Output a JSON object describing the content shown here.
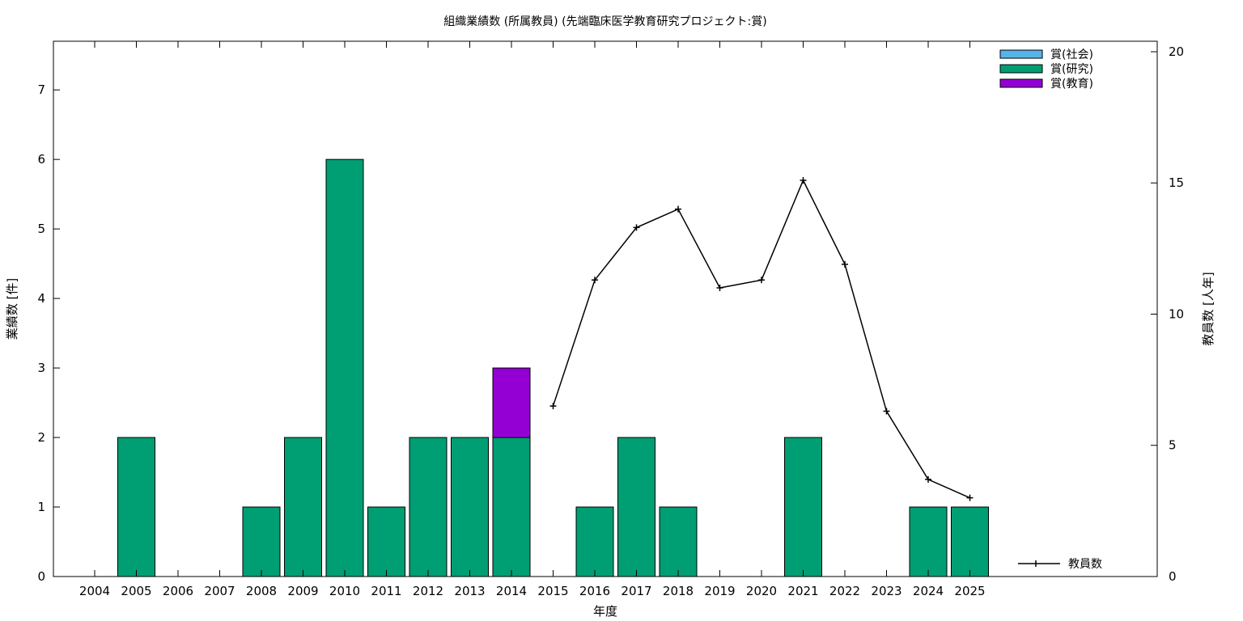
{
  "chart_data": {
    "type": "bar",
    "title": "組織業績数 (所属教員) (先端臨床医学教育研究プロジェクト:賞)",
    "xlabel": "年度",
    "ylabel": "業績数 [件]",
    "y2label": "教員数 [人年]",
    "categories": [
      "2004",
      "2005",
      "2006",
      "2007",
      "2008",
      "2009",
      "2010",
      "2011",
      "2012",
      "2013",
      "2014",
      "2015",
      "2016",
      "2017",
      "2018",
      "2019",
      "2020",
      "2021",
      "2022",
      "2023",
      "2024",
      "2025"
    ],
    "ylim": [
      0,
      7.7
    ],
    "yticks": [
      0,
      1,
      2,
      3,
      4,
      5,
      6,
      7
    ],
    "y2lim": [
      0,
      20.4
    ],
    "y2ticks": [
      0,
      5,
      10,
      15,
      20
    ],
    "stacked": true,
    "grid": false,
    "legend_position": "top-right",
    "series": [
      {
        "name": "賞(社会)",
        "color": "#56b4e9",
        "values": [
          0,
          0,
          0,
          0,
          0,
          0,
          0,
          0,
          0,
          0,
          0,
          0,
          0,
          0,
          0,
          0,
          0,
          0,
          0,
          0,
          0,
          0
        ]
      },
      {
        "name": "賞(研究)",
        "color": "#009e73",
        "values": [
          0,
          2,
          0,
          0,
          1,
          2,
          6,
          1,
          2,
          2,
          2,
          0,
          1,
          2,
          1,
          0,
          0,
          2,
          0,
          0,
          1,
          1
        ]
      },
      {
        "name": "賞(教育)",
        "color": "#9400d3",
        "values": [
          0,
          0,
          0,
          0,
          0,
          0,
          0,
          0,
          0,
          0,
          1,
          0,
          0,
          0,
          0,
          0,
          0,
          0,
          0,
          0,
          0,
          0
        ]
      }
    ],
    "line_series": {
      "name": "教員数",
      "color": "#000000",
      "axis": "y2",
      "x": [
        "2015",
        "2016",
        "2017",
        "2018",
        "2019",
        "2020",
        "2021",
        "2022",
        "2023",
        "2024",
        "2025"
      ],
      "values": [
        6.5,
        11.3,
        13.3,
        14.0,
        11.0,
        11.3,
        15.1,
        11.9,
        6.3,
        3.7,
        3.0
      ]
    }
  }
}
